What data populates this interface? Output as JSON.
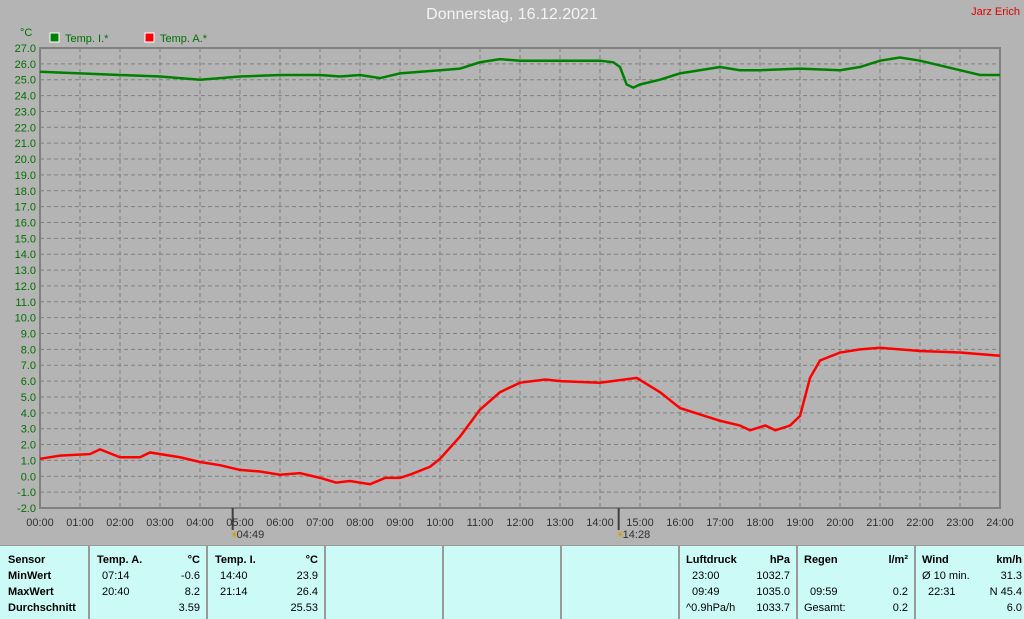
{
  "title": "Donnerstag, 16.12.2021",
  "author": "Jarz Erich",
  "markers": {
    "sunrise": "04:49",
    "sunset": "14:28"
  },
  "chart_data": {
    "type": "line",
    "ylabel": "°C",
    "ylim": [
      -2.0,
      27.0
    ],
    "xlim": [
      "00:00",
      "24:00"
    ],
    "grid": true,
    "legend_placement": "top-left",
    "x_ticks": [
      "00:00",
      "01:00",
      "02:00",
      "03:00",
      "04:00",
      "05:00",
      "06:00",
      "07:00",
      "08:00",
      "09:00",
      "10:00",
      "11:00",
      "12:00",
      "13:00",
      "14:00",
      "15:00",
      "16:00",
      "17:00",
      "18:00",
      "19:00",
      "20:00",
      "21:00",
      "22:00",
      "23:00",
      "24:00"
    ],
    "y_ticks": [
      "-2.0",
      "-1.0",
      "0.0",
      "1.0",
      "2.0",
      "3.0",
      "4.0",
      "5.0",
      "6.0",
      "7.0",
      "8.0",
      "9.0",
      "10.0",
      "11.0",
      "12.0",
      "13.0",
      "14.0",
      "15.0",
      "16.0",
      "17.0",
      "18.0",
      "19.0",
      "20.0",
      "21.0",
      "22.0",
      "23.0",
      "24.0",
      "25.0",
      "26.0",
      "27.0"
    ],
    "series": [
      {
        "name": "Temp. I.*",
        "color": "#008000",
        "points": [
          [
            "00:00",
            25.5
          ],
          [
            "01:00",
            25.4
          ],
          [
            "02:00",
            25.3
          ],
          [
            "03:00",
            25.2
          ],
          [
            "04:00",
            25.0
          ],
          [
            "05:00",
            25.2
          ],
          [
            "06:00",
            25.3
          ],
          [
            "07:00",
            25.3
          ],
          [
            "07:30",
            25.2
          ],
          [
            "08:00",
            25.3
          ],
          [
            "08:30",
            25.1
          ],
          [
            "09:00",
            25.4
          ],
          [
            "10:00",
            25.6
          ],
          [
            "10:30",
            25.7
          ],
          [
            "11:00",
            26.1
          ],
          [
            "11:30",
            26.3
          ],
          [
            "12:00",
            26.2
          ],
          [
            "13:00",
            26.2
          ],
          [
            "14:00",
            26.2
          ],
          [
            "14:20",
            26.1
          ],
          [
            "14:30",
            25.8
          ],
          [
            "14:40",
            24.7
          ],
          [
            "14:50",
            24.5
          ],
          [
            "15:00",
            24.7
          ],
          [
            "15:30",
            25.0
          ],
          [
            "16:00",
            25.4
          ],
          [
            "17:00",
            25.8
          ],
          [
            "17:30",
            25.6
          ],
          [
            "18:00",
            25.6
          ],
          [
            "19:00",
            25.7
          ],
          [
            "20:00",
            25.6
          ],
          [
            "20:30",
            25.8
          ],
          [
            "21:00",
            26.2
          ],
          [
            "21:30",
            26.4
          ],
          [
            "22:00",
            26.2
          ],
          [
            "23:00",
            25.6
          ],
          [
            "23:30",
            25.3
          ],
          [
            "24:00",
            25.3
          ]
        ]
      },
      {
        "name": "Temp. A.*",
        "color": "#ff0000",
        "points": [
          [
            "00:00",
            1.1
          ],
          [
            "00:30",
            1.3
          ],
          [
            "01:15",
            1.4
          ],
          [
            "01:30",
            1.7
          ],
          [
            "02:00",
            1.2
          ],
          [
            "02:30",
            1.2
          ],
          [
            "02:45",
            1.5
          ],
          [
            "03:30",
            1.2
          ],
          [
            "04:00",
            0.9
          ],
          [
            "04:30",
            0.7
          ],
          [
            "05:00",
            0.4
          ],
          [
            "05:30",
            0.3
          ],
          [
            "06:00",
            0.1
          ],
          [
            "06:30",
            0.2
          ],
          [
            "07:00",
            -0.1
          ],
          [
            "07:24",
            -0.4
          ],
          [
            "07:45",
            -0.3
          ],
          [
            "08:15",
            -0.5
          ],
          [
            "08:38",
            -0.1
          ],
          [
            "09:00",
            -0.1
          ],
          [
            "09:15",
            0.1
          ],
          [
            "09:45",
            0.6
          ],
          [
            "10:00",
            1.1
          ],
          [
            "10:30",
            2.5
          ],
          [
            "11:00",
            4.2
          ],
          [
            "11:30",
            5.3
          ],
          [
            "12:00",
            5.9
          ],
          [
            "12:38",
            6.1
          ],
          [
            "13:00",
            6.0
          ],
          [
            "14:00",
            5.9
          ],
          [
            "14:55",
            6.2
          ],
          [
            "15:30",
            5.3
          ],
          [
            "16:00",
            4.3
          ],
          [
            "16:30",
            3.9
          ],
          [
            "17:00",
            3.5
          ],
          [
            "17:30",
            3.2
          ],
          [
            "17:45",
            2.9
          ],
          [
            "18:08",
            3.2
          ],
          [
            "18:23",
            2.9
          ],
          [
            "18:45",
            3.2
          ],
          [
            "19:00",
            3.8
          ],
          [
            "19:15",
            6.2
          ],
          [
            "19:30",
            7.3
          ],
          [
            "20:00",
            7.8
          ],
          [
            "20:30",
            8.0
          ],
          [
            "21:00",
            8.1
          ],
          [
            "21:30",
            8.0
          ],
          [
            "22:00",
            7.9
          ],
          [
            "23:00",
            7.8
          ],
          [
            "24:00",
            7.6
          ]
        ]
      }
    ]
  },
  "table": {
    "sensor": {
      "header": "Sensor",
      "rows": [
        "MinWert",
        "MaxWert",
        "Durchschnitt"
      ]
    },
    "temp_a": {
      "header": "Temp. A.",
      "unit": "°C",
      "min_time": "07:14",
      "min": "-0.6",
      "max_time": "20:40",
      "max": "8.2",
      "avg": "3.59"
    },
    "temp_i": {
      "header": "Temp. I.",
      "unit": "°C",
      "min_time": "14:40",
      "min": "23.9",
      "max_time": "21:14",
      "max": "26.4",
      "avg": "25.53"
    },
    "pressure": {
      "header": "Luftdruck",
      "unit": "hPa",
      "r1_label": "23:00",
      "r1": "1032.7",
      "r2_label": "09:49",
      "r2": "1035.0",
      "r3_label": "^0.9hPa/h",
      "r3": "1033.7"
    },
    "rain": {
      "header": "Regen",
      "unit": "l/m²",
      "r2_label": "09:59",
      "r2": "0.2",
      "r3_label": "Gesamt:",
      "r3": "0.2"
    },
    "wind": {
      "header": "Wind",
      "unit": "km/h",
      "r1_label": "Ø 10 min.",
      "r1": "31.3",
      "r2_label": "22:31",
      "r2": "N 45.4",
      "r3": "6.0"
    }
  }
}
